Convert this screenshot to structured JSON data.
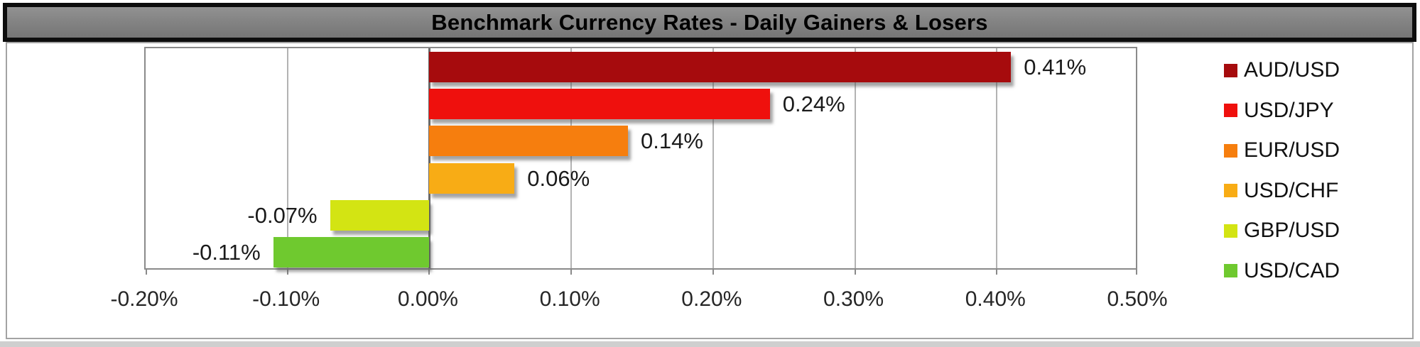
{
  "page": {
    "title": "Benchmark Currency Rates - Daily Gainers & Losers"
  },
  "chart_data": {
    "type": "bar",
    "orientation": "horizontal",
    "title": "Benchmark Currency Rates - Daily Gainers & Losers",
    "categories": [
      "AUD/USD",
      "USD/JPY",
      "EUR/USD",
      "USD/CHF",
      "GBP/USD",
      "USD/CAD"
    ],
    "values": [
      0.41,
      0.24,
      0.14,
      0.06,
      -0.07,
      -0.11
    ],
    "value_labels": [
      "0.41%",
      "0.24%",
      "0.14%",
      "0.06%",
      "-0.07%",
      "-0.11%"
    ],
    "bar_colors": [
      "#A60B0D",
      "#EF100D",
      "#F67E0E",
      "#F8AC15",
      "#D3E413",
      "#6FC92F"
    ],
    "xlabel": "",
    "ylabel": "",
    "xlim": [
      -0.2,
      0.5
    ],
    "x_ticks": [
      {
        "label": "-0.20%",
        "value": -0.2
      },
      {
        "label": "-0.10%",
        "value": -0.1
      },
      {
        "label": "0.00%",
        "value": 0.0
      },
      {
        "label": "0.10%",
        "value": 0.1
      },
      {
        "label": "0.20%",
        "value": 0.2
      },
      {
        "label": "0.30%",
        "value": 0.3
      },
      {
        "label": "0.40%",
        "value": 0.4
      },
      {
        "label": "0.50%",
        "value": 0.5
      }
    ],
    "grid": "vertical-gridlines-on",
    "legend_position": "right",
    "legend": [
      {
        "label": "AUD/USD",
        "color": "#A60B0D"
      },
      {
        "label": "USD/JPY",
        "color": "#EF100D"
      },
      {
        "label": "EUR/USD",
        "color": "#F67E0E"
      },
      {
        "label": "USD/CHF",
        "color": "#F8AC15"
      },
      {
        "label": "GBP/USD",
        "color": "#D3E413"
      },
      {
        "label": "USD/CAD",
        "color": "#6FC92F"
      }
    ]
  },
  "colors": {
    "title_bg": "#848484",
    "title_border": "#0D0D0D",
    "title_text": "#000000",
    "chart_bg": "#FFFFFF",
    "chart_border": "#A3A3A3",
    "plot_border": "#8A8A8A",
    "gridline": "#B3B3B3",
    "zero_line": "#6B6B6B",
    "axis_text": "#262626",
    "data_label_text": "#1A1A1A"
  }
}
